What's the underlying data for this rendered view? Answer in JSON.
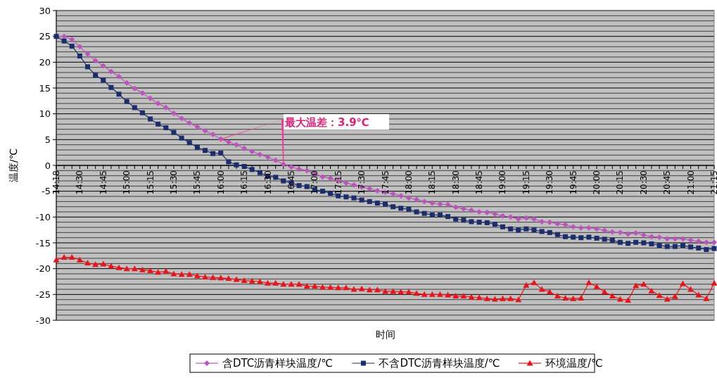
{
  "chart_data": {
    "type": "line",
    "xlabel": "时间",
    "ylabel": "温度/℃",
    "categories": [
      "14:18",
      null,
      null,
      "14:30",
      null,
      null,
      "14:45",
      null,
      null,
      "15:00",
      null,
      null,
      "15:15",
      null,
      null,
      "15:30",
      null,
      null,
      "15:45",
      null,
      null,
      "16:00",
      null,
      null,
      "16:15",
      null,
      null,
      "16:30",
      null,
      null,
      "16:45",
      null,
      null,
      "17:00",
      null,
      null,
      "17:15",
      null,
      null,
      "17:30",
      null,
      null,
      "17:45",
      null,
      null,
      "18:00",
      null,
      null,
      "18:15",
      null,
      null,
      "18:30",
      null,
      null,
      "18:45",
      null,
      null,
      "19:00",
      null,
      null,
      "19:15",
      null,
      null,
      "19:30",
      null,
      null,
      "19:45",
      null,
      null,
      "20:00",
      null,
      null,
      "20:15",
      null,
      null,
      "20:30",
      null,
      null,
      "20:45",
      null,
      null,
      "21:00",
      null,
      null,
      "21:15"
    ],
    "series": [
      {
        "name": "含DTC沥青样块温度/℃",
        "color": "#bb55bb",
        "marker": "diamond",
        "values": [
          25.0,
          25.0,
          24.4,
          23.0,
          21.6,
          20.3,
          19.3,
          18.2,
          17.2,
          16.0,
          14.9,
          14.0,
          13.0,
          12.0,
          11.2,
          10.1,
          9.1,
          8.2,
          7.5,
          6.7,
          6.0,
          5.1,
          4.5,
          4.0,
          3.3,
          2.7,
          2.1,
          1.6,
          1.0,
          0.2,
          -0.3,
          -0.7,
          -1.0,
          -1.6,
          -2.2,
          -2.5,
          -3.0,
          -3.4,
          -3.8,
          -4.2,
          -4.5,
          -4.9,
          -5.2,
          -5.5,
          -5.9,
          -6.3,
          -6.6,
          -7.0,
          -7.3,
          -7.5,
          -7.6,
          -8.1,
          -8.4,
          -8.7,
          -9.0,
          -9.1,
          -9.4,
          -9.8,
          -10.0,
          -10.4,
          -10.2,
          -10.4,
          -10.9,
          -11.0,
          -11.3,
          -11.5,
          -11.9,
          -12.1,
          -12.1,
          -12.3,
          -12.6,
          -12.9,
          -13.0,
          -13.3,
          -13.1,
          -13.5,
          -13.8,
          -13.9,
          -14.2,
          -14.2,
          -14.2,
          -14.5,
          -14.7,
          -14.9,
          -14.9
        ]
      },
      {
        "name": "不含DTC沥青样块温度/℃",
        "color": "#1c2d6b",
        "marker": "square",
        "values": [
          25.0,
          24.1,
          23.1,
          21.2,
          19.1,
          17.5,
          16.5,
          15.1,
          13.8,
          12.4,
          11.2,
          10.2,
          9.0,
          8.0,
          7.3,
          6.4,
          5.3,
          4.4,
          3.5,
          2.9,
          2.3,
          2.4,
          0.7,
          0.1,
          -0.2,
          -0.8,
          -1.4,
          -2.1,
          -2.3,
          -3.0,
          -3.4,
          -3.9,
          -4.1,
          -4.7,
          -5.0,
          -5.4,
          -5.9,
          -6.1,
          -6.3,
          -6.7,
          -7.0,
          -7.3,
          -7.5,
          -8.0,
          -8.3,
          -8.5,
          -9.0,
          -9.3,
          -9.6,
          -9.6,
          -9.9,
          -10.4,
          -10.6,
          -10.9,
          -11.0,
          -11.1,
          -11.4,
          -11.9,
          -12.3,
          -12.5,
          -12.3,
          -12.5,
          -12.8,
          -13.0,
          -13.4,
          -13.8,
          -13.9,
          -14.0,
          -13.9,
          -14.1,
          -14.3,
          -14.5,
          -14.9,
          -15.1,
          -14.9,
          -15.0,
          -15.2,
          -15.5,
          -15.7,
          -15.7,
          -15.5,
          -15.8,
          -16.0,
          -16.3,
          -16.1
        ]
      },
      {
        "name": "环境温度/℃",
        "color": "#e8141c",
        "marker": "triangle",
        "values": [
          -18.3,
          -17.8,
          -17.8,
          -18.3,
          -18.9,
          -19.2,
          -19.1,
          -19.5,
          -19.8,
          -20.0,
          -20.0,
          -20.2,
          -20.4,
          -20.7,
          -20.5,
          -21.0,
          -21.1,
          -21.1,
          -21.4,
          -21.6,
          -21.7,
          -21.8,
          -21.9,
          -22.1,
          -22.3,
          -22.4,
          -22.5,
          -22.8,
          -22.8,
          -23.0,
          -23.0,
          -23.0,
          -23.4,
          -23.4,
          -23.6,
          -23.6,
          -23.7,
          -23.7,
          -24.0,
          -23.9,
          -24.1,
          -24.1,
          -24.4,
          -24.4,
          -24.5,
          -24.5,
          -24.8,
          -25.0,
          -25.0,
          -25.0,
          -25.1,
          -25.3,
          -25.3,
          -25.5,
          -25.6,
          -25.8,
          -25.9,
          -25.8,
          -25.8,
          -26.0,
          -23.2,
          -22.7,
          -24.0,
          -24.5,
          -25.3,
          -25.7,
          -25.8,
          -25.7,
          -22.7,
          -23.5,
          -24.5,
          -25.3,
          -25.9,
          -26.1,
          -23.3,
          -23.0,
          -24.3,
          -25.2,
          -25.9,
          -25.4,
          -22.9,
          -24.0,
          -25.1,
          -25.8,
          -22.8
        ]
      }
    ],
    "ylim": [
      -30,
      30
    ],
    "yticks": [
      -30,
      {
        "value": -29,
        "label": null
      },
      {
        "value": -28,
        "label": null
      },
      {
        "value": -27,
        "label": null
      },
      {
        "value": -26,
        "label": null
      },
      -25,
      {
        "value": -24,
        "label": null
      },
      {
        "value": -23,
        "label": null
      },
      {
        "value": -22,
        "label": null
      },
      {
        "value": -21,
        "label": null
      },
      -20,
      {
        "value": -19,
        "label": null
      },
      {
        "value": -18,
        "label": null
      },
      {
        "value": -17,
        "label": null
      },
      {
        "value": -16,
        "label": null
      },
      -15,
      {
        "value": -14,
        "label": null
      },
      {
        "value": -13,
        "label": null
      },
      {
        "value": -12,
        "label": null
      },
      {
        "value": -11,
        "label": null
      },
      -10,
      {
        "value": -9,
        "label": null
      },
      {
        "value": -8,
        "label": null
      },
      {
        "value": -7,
        "label": null
      },
      {
        "value": -6,
        "label": null
      },
      -5,
      {
        "value": -4,
        "label": null
      },
      {
        "value": -3,
        "label": null
      },
      {
        "value": -2,
        "label": null
      },
      {
        "value": -1,
        "label": null
      },
      0,
      {
        "value": 1,
        "label": null
      },
      {
        "value": 2,
        "label": null
      },
      {
        "value": 3,
        "label": null
      },
      {
        "value": 4,
        "label": null
      },
      5,
      {
        "value": 6,
        "label": null
      },
      {
        "value": 7,
        "label": null
      },
      {
        "value": 8,
        "label": null
      },
      {
        "value": 9,
        "label": null
      },
      10,
      {
        "value": 11,
        "label": null
      },
      {
        "value": 12,
        "label": null
      },
      {
        "value": 13,
        "label": null
      },
      {
        "value": 14,
        "label": null
      },
      15,
      {
        "value": 16,
        "label": null
      },
      {
        "value": 17,
        "label": null
      },
      {
        "value": 18,
        "label": null
      },
      {
        "value": 19,
        "label": null
      },
      20,
      {
        "value": 21,
        "label": null
      },
      {
        "value": 22,
        "label": null
      },
      {
        "value": 23,
        "label": null
      },
      {
        "value": 24,
        "label": null
      },
      25,
      {
        "value": 26,
        "label": null
      },
      {
        "value": 27,
        "label": null
      },
      {
        "value": 28,
        "label": null
      },
      {
        "value": 29,
        "label": null
      },
      30
    ],
    "grid": "y",
    "legend": "bottom",
    "line_style": "solid",
    "annotations": [
      "最大温差：3.9℃"
    ]
  }
}
